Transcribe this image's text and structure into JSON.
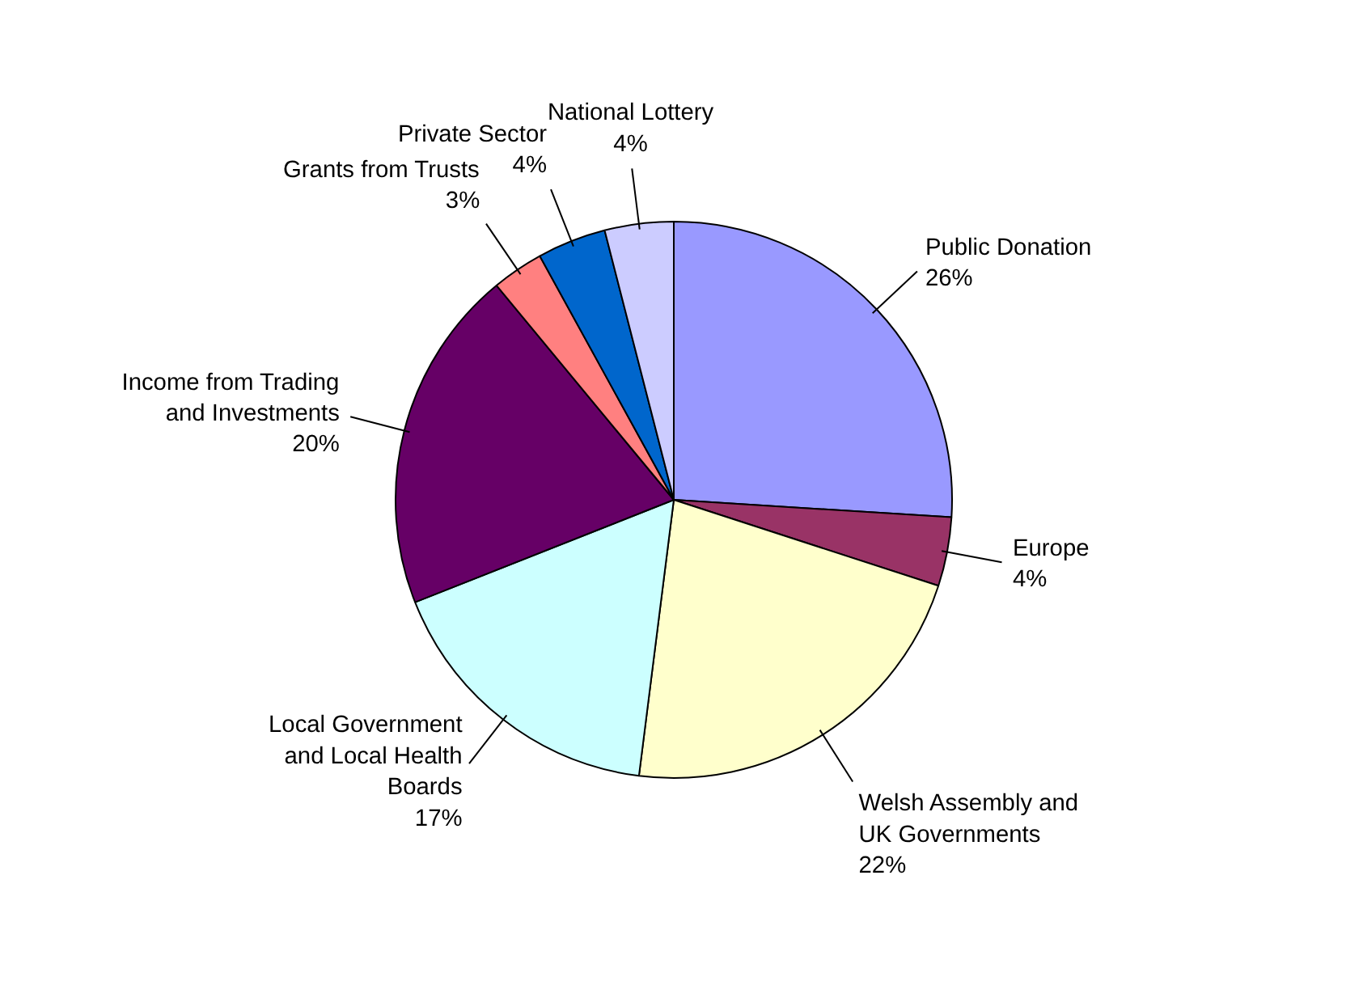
{
  "chart_data": {
    "type": "pie",
    "categories": [
      "Public Donation",
      "Europe",
      "Welsh Assembly and UK Governments",
      "Local Government and Local Health Boards",
      "Income from Trading and Investments",
      "Grants from Trusts",
      "Private Sector",
      "National Lottery"
    ],
    "values": [
      26,
      4,
      22,
      17,
      20,
      3,
      4,
      4
    ],
    "value_labels": [
      "26%",
      "4%",
      "22%",
      "17%",
      "20%",
      "3%",
      "4%",
      "4%"
    ],
    "colors": [
      "#9999ff",
      "#993366",
      "#ffffcc",
      "#ccffff",
      "#660066",
      "#ff8080",
      "#0066cc",
      "#ccccff"
    ]
  }
}
